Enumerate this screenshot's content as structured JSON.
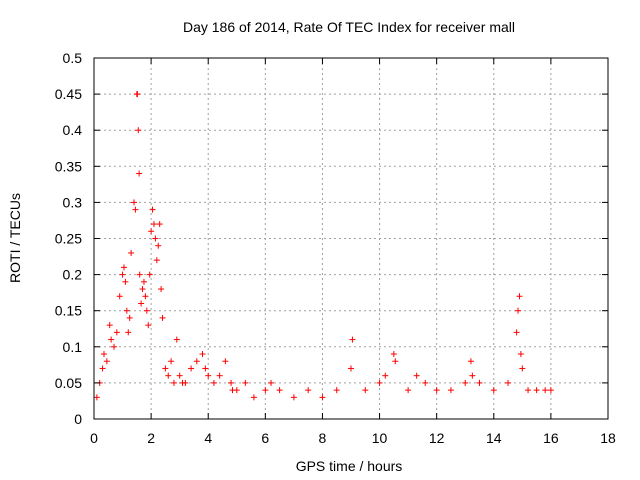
{
  "chart_data": {
    "type": "scatter",
    "title": "Day 186 of 2014, Rate Of TEC Index for receiver mall",
    "xlabel": "GPS time / hours",
    "ylabel": "ROTI / TECUs",
    "xlim": [
      0,
      18
    ],
    "ylim": [
      0,
      0.5
    ],
    "xticks": [
      "0",
      "2",
      "4",
      "6",
      "8",
      "10",
      "12",
      "14",
      "16",
      "18"
    ],
    "yticks": [
      "0",
      "0.05",
      "0.1",
      "0.15",
      "0.2",
      "0.25",
      "0.3",
      "0.35",
      "0.4",
      "0.45",
      "0.5"
    ],
    "grid": true,
    "marker": "+",
    "color": "#ff0000",
    "series": [
      {
        "name": "ROTI",
        "x": [
          0.1,
          0.2,
          0.3,
          0.35,
          0.45,
          0.55,
          0.6,
          0.7,
          0.8,
          0.9,
          1.0,
          1.05,
          1.1,
          1.15,
          1.2,
          1.25,
          1.3,
          1.4,
          1.45,
          1.5,
          1.52,
          1.55,
          1.58,
          1.6,
          1.65,
          1.7,
          1.75,
          1.8,
          1.85,
          1.9,
          1.95,
          2.0,
          2.05,
          2.1,
          2.15,
          2.2,
          2.25,
          2.3,
          2.35,
          2.4,
          2.5,
          2.6,
          2.7,
          2.8,
          2.9,
          3.0,
          3.1,
          3.2,
          3.4,
          3.6,
          3.8,
          3.9,
          4.0,
          4.2,
          4.4,
          4.6,
          4.8,
          4.85,
          5.0,
          5.3,
          5.6,
          6.0,
          6.2,
          6.5,
          7.0,
          7.5,
          8.0,
          8.5,
          9.0,
          9.05,
          9.5,
          10.0,
          10.2,
          10.5,
          10.55,
          11.0,
          11.3,
          11.6,
          12.0,
          12.5,
          13.0,
          13.2,
          13.25,
          13.5,
          14.0,
          14.5,
          14.8,
          14.85,
          14.9,
          14.95,
          15.0,
          15.2,
          15.5,
          15.8,
          16.0
        ],
        "y": [
          0.03,
          0.05,
          0.07,
          0.09,
          0.08,
          0.13,
          0.11,
          0.1,
          0.12,
          0.17,
          0.2,
          0.21,
          0.19,
          0.15,
          0.12,
          0.14,
          0.23,
          0.3,
          0.29,
          0.45,
          0.45,
          0.4,
          0.34,
          0.2,
          0.16,
          0.18,
          0.19,
          0.17,
          0.15,
          0.13,
          0.2,
          0.26,
          0.29,
          0.27,
          0.25,
          0.22,
          0.24,
          0.27,
          0.18,
          0.14,
          0.07,
          0.06,
          0.08,
          0.05,
          0.11,
          0.06,
          0.05,
          0.05,
          0.07,
          0.08,
          0.09,
          0.07,
          0.06,
          0.05,
          0.06,
          0.08,
          0.05,
          0.04,
          0.04,
          0.05,
          0.03,
          0.04,
          0.05,
          0.04,
          0.03,
          0.04,
          0.03,
          0.04,
          0.07,
          0.11,
          0.04,
          0.05,
          0.06,
          0.09,
          0.08,
          0.04,
          0.06,
          0.05,
          0.04,
          0.04,
          0.05,
          0.08,
          0.06,
          0.05,
          0.04,
          0.05,
          0.12,
          0.15,
          0.17,
          0.09,
          0.07,
          0.04,
          0.04,
          0.04,
          0.04
        ]
      }
    ]
  }
}
